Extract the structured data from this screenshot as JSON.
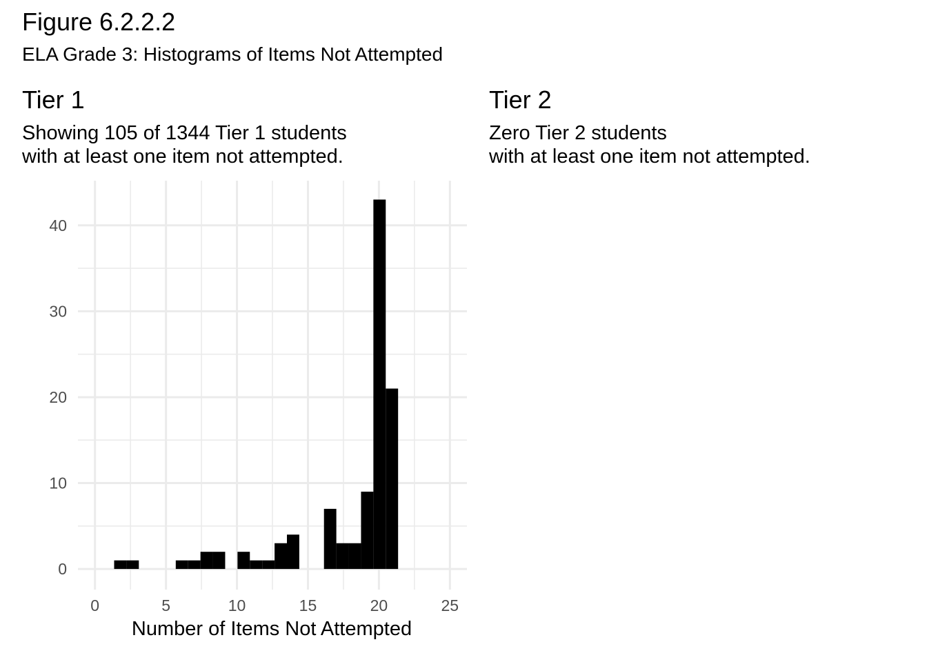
{
  "figure": {
    "title": "Figure 6.2.2.2",
    "subtitle": "ELA Grade 3: Histograms of Items Not Attempted"
  },
  "panels": [
    {
      "title": "Tier 1",
      "subtitle_line1": "Showing 105 of 1344 Tier 1 students",
      "subtitle_line2": "with at least one item not attempted."
    },
    {
      "title": "Tier 2",
      "subtitle_line1": "Zero Tier 2 students",
      "subtitle_line2": "with at least one item not attempted."
    }
  ],
  "chart_data": {
    "type": "bar",
    "title": "Tier 1",
    "xlabel": "Number of Items Not Attempted",
    "ylabel": "",
    "xlim": [
      -1.2,
      26.2
    ],
    "ylim": [
      -2.4,
      45.2
    ],
    "x_ticks": [
      0,
      5,
      10,
      15,
      20,
      25
    ],
    "x_tick_labels": [
      "0",
      "5",
      "10",
      "15",
      "20",
      "25"
    ],
    "y_ticks": [
      0,
      10,
      20,
      30,
      40
    ],
    "y_tick_labels": [
      "0",
      "10",
      "20",
      "30",
      "40"
    ],
    "grid": true,
    "bin_width": 0.87,
    "bins": [
      {
        "start": 1.35,
        "count": 1
      },
      {
        "start": 2.22,
        "count": 1
      },
      {
        "start": 5.69,
        "count": 1
      },
      {
        "start": 6.56,
        "count": 1
      },
      {
        "start": 7.43,
        "count": 2
      },
      {
        "start": 8.3,
        "count": 2
      },
      {
        "start": 10.04,
        "count": 2
      },
      {
        "start": 10.91,
        "count": 1
      },
      {
        "start": 11.78,
        "count": 1
      },
      {
        "start": 12.65,
        "count": 3
      },
      {
        "start": 13.52,
        "count": 4
      },
      {
        "start": 16.13,
        "count": 7
      },
      {
        "start": 17.0,
        "count": 3
      },
      {
        "start": 17.87,
        "count": 3
      },
      {
        "start": 18.74,
        "count": 9
      },
      {
        "start": 19.61,
        "count": 43
      },
      {
        "start": 20.48,
        "count": 21
      }
    ],
    "bar_color": "#000000",
    "grid_color": "#ebebeb"
  }
}
